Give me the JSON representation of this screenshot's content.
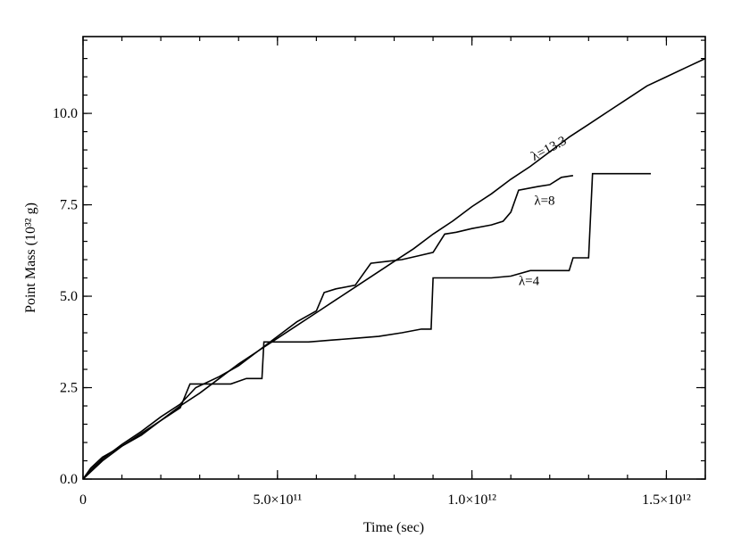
{
  "chart_data": {
    "type": "line",
    "title": "",
    "xlabel": "Time (sec)",
    "ylabel": "Point Mass (10³² g)",
    "xlim": [
      0,
      1600000000000.0
    ],
    "ylim": [
      0,
      12.1
    ],
    "grid": false,
    "x_ticks": [
      {
        "value": 0,
        "label": "0"
      },
      {
        "value": 500000000000.0,
        "label": "5.0×10¹¹"
      },
      {
        "value": 1000000000000.0,
        "label": "1.0×10¹²"
      },
      {
        "value": 1500000000000.0,
        "label": "1.5×10¹²"
      }
    ],
    "x_minor_step": 100000000000.0,
    "y_ticks": [
      {
        "value": 0,
        "label": "0.0"
      },
      {
        "value": 2.5,
        "label": "2.5"
      },
      {
        "value": 5.0,
        "label": "5.0"
      },
      {
        "value": 7.5,
        "label": "7.5"
      },
      {
        "value": 10.0,
        "label": "10.0"
      }
    ],
    "y_minor_step": 0.5,
    "series": [
      {
        "name": "λ=13.3",
        "label_anchor": {
          "x": 1160000000000.0,
          "y": 8.7,
          "angle": -28
        },
        "x": [
          0,
          20000000000.0,
          50000000000.0,
          100000000000.0,
          150000000000.0,
          200000000000.0,
          250000000000.0,
          300000000000.0,
          350000000000.0,
          400000000000.0,
          450000000000.0,
          500000000000.0,
          550000000000.0,
          600000000000.0,
          650000000000.0,
          700000000000.0,
          750000000000.0,
          800000000000.0,
          850000000000.0,
          900000000000.0,
          950000000000.0,
          1000000000000.0,
          1050000000000.0,
          1100000000000.0,
          1150000000000.0,
          1200000000000.0,
          1250000000000.0,
          1300000000000.0,
          1350000000000.0,
          1400000000000.0,
          1450000000000.0,
          1500000000000.0,
          1550000000000.0,
          1600000000000.0
        ],
        "y": [
          0,
          0.2,
          0.5,
          0.9,
          1.2,
          1.6,
          2.0,
          2.35,
          2.75,
          3.15,
          3.5,
          3.85,
          4.2,
          4.55,
          4.9,
          5.25,
          5.6,
          5.95,
          6.3,
          6.7,
          7.05,
          7.45,
          7.8,
          8.2,
          8.55,
          8.95,
          9.35,
          9.7,
          10.05,
          10.4,
          10.75,
          11.0,
          11.25,
          11.5
        ]
      },
      {
        "name": "λ=8",
        "label_anchor": {
          "x": 1160000000000.0,
          "y": 7.5,
          "angle": 0
        },
        "x": [
          0,
          20000000000.0,
          50000000000.0,
          100000000000.0,
          150000000000.0,
          200000000000.0,
          250000000000.0,
          290000000000.0,
          350000000000.0,
          400000000000.0,
          450000000000.0,
          500000000000.0,
          550000000000.0,
          600000000000.0,
          620000000000.0,
          650000000000.0,
          700000000000.0,
          740000000000.0,
          780000000000.0,
          820000000000.0,
          860000000000.0,
          900000000000.0,
          930000000000.0,
          960000000000.0,
          1000000000000.0,
          1050000000000.0,
          1080000000000.0,
          1100000000000.0,
          1120000000000.0,
          1170000000000.0,
          1200000000000.0,
          1230000000000.0,
          1260000000000.0
        ],
        "y": [
          0,
          0.25,
          0.55,
          0.95,
          1.3,
          1.7,
          2.05,
          2.5,
          2.8,
          3.1,
          3.5,
          3.9,
          4.3,
          4.6,
          5.1,
          5.2,
          5.3,
          5.9,
          5.95,
          6.0,
          6.1,
          6.2,
          6.7,
          6.75,
          6.85,
          6.95,
          7.05,
          7.3,
          7.9,
          8.0,
          8.05,
          8.25,
          8.3
        ]
      },
      {
        "name": "λ=4",
        "label_anchor": {
          "x": 1120000000000.0,
          "y": 5.3,
          "angle": 0
        },
        "x": [
          0,
          20000000000.0,
          50000000000.0,
          100000000000.0,
          150000000000.0,
          200000000000.0,
          250000000000.0,
          275000000000.0,
          330000000000.0,
          380000000000.0,
          420000000000.0,
          460000000000.0,
          465000000000.0,
          520000000000.0,
          550000000000.0,
          580000000000.0,
          640000000000.0,
          700000000000.0,
          760000000000.0,
          820000000000.0,
          870000000000.0,
          895000000000.0,
          900000000000.0,
          950000000000.0,
          1000000000000.0,
          1050000000000.0,
          1100000000000.0,
          1150000000000.0,
          1200000000000.0,
          1250000000000.0,
          1260000000000.0,
          1300000000000.0,
          1310000000000.0,
          1380000000000.0,
          1460000000000.0
        ],
        "y": [
          0,
          0.3,
          0.6,
          0.9,
          1.25,
          1.6,
          1.95,
          2.6,
          2.6,
          2.6,
          2.75,
          2.75,
          3.75,
          3.75,
          3.75,
          3.75,
          3.8,
          3.85,
          3.9,
          4.0,
          4.1,
          4.1,
          5.5,
          5.5,
          5.5,
          5.5,
          5.55,
          5.7,
          5.7,
          5.7,
          6.05,
          6.05,
          8.35,
          8.35,
          8.35
        ]
      }
    ]
  }
}
